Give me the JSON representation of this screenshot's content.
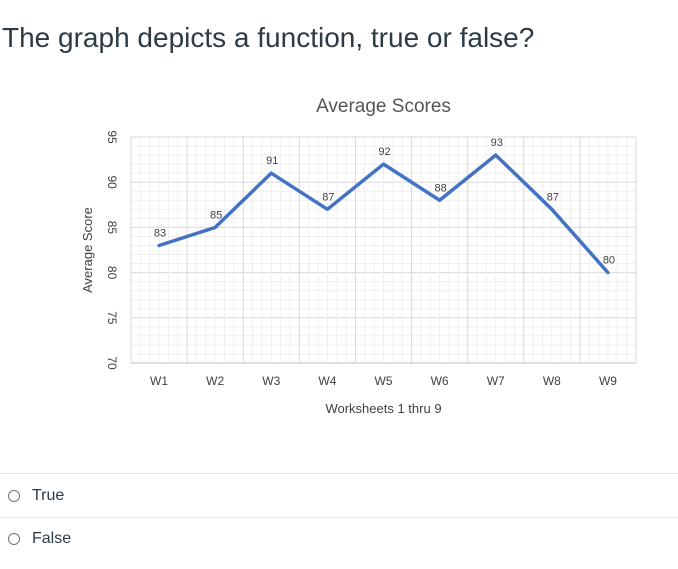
{
  "question": {
    "text": "The graph depicts a function, true or false?"
  },
  "chart_data": {
    "type": "line",
    "title": "Average Scores",
    "xlabel": "Worksheets 1 thru 9",
    "ylabel": "Average Score",
    "categories": [
      "W1",
      "W2",
      "W3",
      "W4",
      "W5",
      "W6",
      "W7",
      "W8",
      "W9"
    ],
    "values": [
      83,
      85,
      91,
      87,
      92,
      88,
      93,
      87,
      80
    ],
    "ylim": [
      70,
      95
    ],
    "yticks": [
      70,
      75,
      80,
      85,
      90,
      95
    ],
    "grid": true,
    "data_labels": true,
    "line_color": "#4472c4"
  },
  "answers": [
    {
      "label": "True"
    },
    {
      "label": "False"
    }
  ]
}
